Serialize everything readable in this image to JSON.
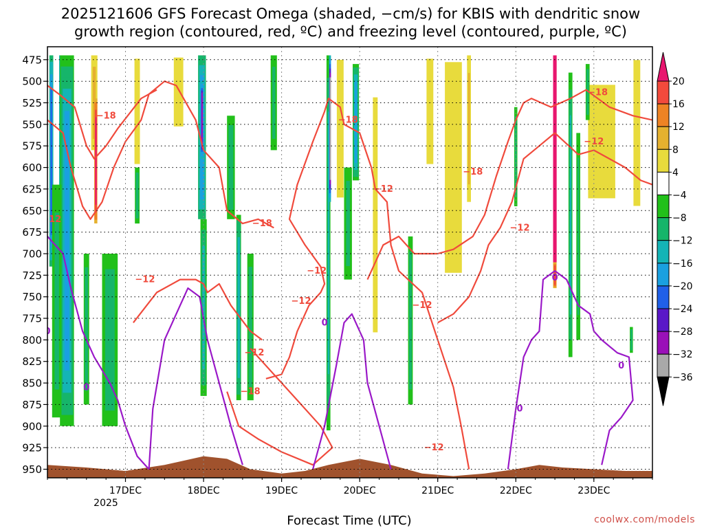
{
  "chart_data": {
    "type": "heatmap",
    "title_line1": "2025121606 GFS Forecast Omega (shaded, −cm/s) for KBIS with dendritic snow",
    "title_line2": "growth region (contoured, red, ºC) and freezing level (contoured, purple, ºC)",
    "xlabel": "Forecast Time (UTC)",
    "credit": "coolwx.com/models",
    "y_axis": {
      "variable": "pressure (hPa)",
      "ticks": [
        475,
        500,
        525,
        550,
        575,
        600,
        625,
        650,
        675,
        700,
        725,
        750,
        775,
        800,
        825,
        850,
        875,
        900,
        925,
        950
      ],
      "ylim": [
        960,
        460
      ]
    },
    "x_axis": {
      "variable": "forecast day",
      "tick_labels": [
        "17DEC",
        "18DEC",
        "19DEC",
        "20DEC",
        "21DEC",
        "22DEC",
        "23DEC"
      ],
      "tick_values": [
        1,
        2,
        3,
        4,
        5,
        6,
        7
      ],
      "year_label": "2025",
      "xlim": [
        0,
        7.75
      ]
    },
    "colorbar": {
      "levels": [
        "20",
        "16",
        "12",
        "8",
        "4",
        "−4",
        "−8",
        "−12",
        "−16",
        "−20",
        "−24",
        "−28",
        "−32",
        "−36"
      ],
      "colors": [
        "#e8166f",
        "#f24a3c",
        "#ee8324",
        "#e5b12f",
        "#e8db3c",
        "#ffffff",
        "#22c01a",
        "#16b56a",
        "#14b4b6",
        "#1aa0e0",
        "#2060e8",
        "#5a18c8",
        "#9a10b8",
        "#a9a9a9",
        "#000000"
      ]
    },
    "contour_labels": {
      "dgz": [
        "−18",
        "−12",
        "−12",
        "−18",
        "−12",
        "−12",
        "−18",
        "−12",
        "−12",
        "−18",
        "−12",
        "−18",
        "−12",
        "−12",
        "−18",
        "−12"
      ],
      "freezing": [
        "0",
        "0",
        "0",
        "0",
        "0",
        "0"
      ]
    },
    "omega_bands": [
      {
        "t": 0.05,
        "w": 0.05,
        "p_top": 470,
        "p_bot": 715,
        "level": 0.6
      },
      {
        "t": 0.22,
        "w": 0.14,
        "p_top": 470,
        "p_bot": 680,
        "level": 0.75
      },
      {
        "t": 0.25,
        "w": 0.18,
        "p_top": 470,
        "p_bot": 900,
        "level": 0.45
      },
      {
        "t": 0.12,
        "w": 0.12,
        "p_top": 620,
        "p_bot": 890,
        "level": 0.25
      },
      {
        "t": 0.6,
        "w": 0.08,
        "p_top": 470,
        "p_bot": 580,
        "level": -0.25
      },
      {
        "t": 0.62,
        "w": 0.04,
        "p_top": 520,
        "p_bot": 665,
        "level": -0.6
      },
      {
        "t": 0.5,
        "w": 0.07,
        "p_top": 700,
        "p_bot": 875,
        "level": 0.3
      },
      {
        "t": 1.15,
        "w": 0.08,
        "p_top": 470,
        "p_bot": 600,
        "level": -0.2
      },
      {
        "t": 1.15,
        "w": 0.06,
        "p_top": 600,
        "p_bot": 665,
        "level": 0.3
      },
      {
        "t": 0.8,
        "w": 0.2,
        "p_top": 700,
        "p_bot": 900,
        "level": 0.3
      },
      {
        "t": 1.98,
        "w": 0.1,
        "p_top": 470,
        "p_bot": 660,
        "level": 0.5
      },
      {
        "t": 1.98,
        "w": 0.04,
        "p_top": 500,
        "p_bot": 590,
        "level": 0.8
      },
      {
        "t": 2.0,
        "w": 0.08,
        "p_top": 660,
        "p_bot": 865,
        "level": 0.35
      },
      {
        "t": 1.68,
        "w": 0.14,
        "p_top": 470,
        "p_bot": 555,
        "level": -0.2
      },
      {
        "t": 2.35,
        "w": 0.1,
        "p_top": 540,
        "p_bot": 660,
        "level": 0.3
      },
      {
        "t": 2.45,
        "w": 0.06,
        "p_top": 655,
        "p_bot": 870,
        "level": 0.4
      },
      {
        "t": 2.6,
        "w": 0.08,
        "p_top": 700,
        "p_bot": 870,
        "level": 0.3
      },
      {
        "t": 2.9,
        "w": 0.08,
        "p_top": 470,
        "p_bot": 580,
        "level": 0.28
      },
      {
        "t": 3.6,
        "w": 0.05,
        "p_top": 470,
        "p_bot": 905,
        "level": 0.35
      },
      {
        "t": 3.62,
        "w": 0.025,
        "p_top": 470,
        "p_bot": 640,
        "level": 0.95
      },
      {
        "t": 3.95,
        "w": 0.08,
        "p_top": 480,
        "p_bot": 615,
        "level": 0.45
      },
      {
        "t": 3.85,
        "w": 0.1,
        "p_top": 600,
        "p_bot": 730,
        "level": 0.28
      },
      {
        "t": 3.75,
        "w": 0.1,
        "p_top": 470,
        "p_bot": 640,
        "level": -0.2
      },
      {
        "t": 4.2,
        "w": 0.07,
        "p_top": 510,
        "p_bot": 800,
        "level": -0.2
      },
      {
        "t": 4.65,
        "w": 0.06,
        "p_top": 680,
        "p_bot": 875,
        "level": 0.3
      },
      {
        "t": 4.9,
        "w": 0.1,
        "p_top": 470,
        "p_bot": 600,
        "level": -0.2
      },
      {
        "t": 5.2,
        "w": 0.25,
        "p_top": 470,
        "p_bot": 730,
        "level": -0.2
      },
      {
        "t": 5.4,
        "w": 0.05,
        "p_top": 470,
        "p_bot": 640,
        "level": -0.25
      },
      {
        "t": 6.0,
        "w": 0.04,
        "p_top": 530,
        "p_bot": 645,
        "level": 0.3
      },
      {
        "t": 6.5,
        "w": 0.045,
        "p_top": 470,
        "p_bot": 710,
        "level": -1.0
      },
      {
        "t": 6.5,
        "w": 0.045,
        "p_top": 710,
        "p_bot": 740,
        "level": -0.5
      },
      {
        "t": 6.7,
        "w": 0.05,
        "p_top": 490,
        "p_bot": 820,
        "level": 0.35
      },
      {
        "t": 6.8,
        "w": 0.05,
        "p_top": 560,
        "p_bot": 800,
        "level": 0.25
      },
      {
        "t": 7.1,
        "w": 0.4,
        "p_top": 500,
        "p_bot": 640,
        "level": -0.2
      },
      {
        "t": 7.55,
        "w": 0.1,
        "p_top": 470,
        "p_bot": 650,
        "level": -0.2
      },
      {
        "t": 6.92,
        "w": 0.05,
        "p_top": 480,
        "p_bot": 545,
        "level": 0.3
      },
      {
        "t": 7.48,
        "w": 0.04,
        "p_top": 785,
        "p_bot": 815,
        "level": 0.3
      }
    ],
    "terrain_top_hPa": [
      [
        0,
        945
      ],
      [
        0.5,
        948
      ],
      [
        1,
        952
      ],
      [
        1.5,
        945
      ],
      [
        2,
        935
      ],
      [
        2.3,
        938
      ],
      [
        2.6,
        950
      ],
      [
        3,
        955
      ],
      [
        3.3,
        952
      ],
      [
        3.6,
        945
      ],
      [
        4,
        938
      ],
      [
        4.4,
        945
      ],
      [
        4.8,
        955
      ],
      [
        5.2,
        958
      ],
      [
        5.6,
        955
      ],
      [
        6,
        950
      ],
      [
        6.3,
        945
      ],
      [
        6.6,
        948
      ],
      [
        7,
        950
      ],
      [
        7.4,
        952
      ],
      [
        7.75,
        952
      ]
    ]
  }
}
